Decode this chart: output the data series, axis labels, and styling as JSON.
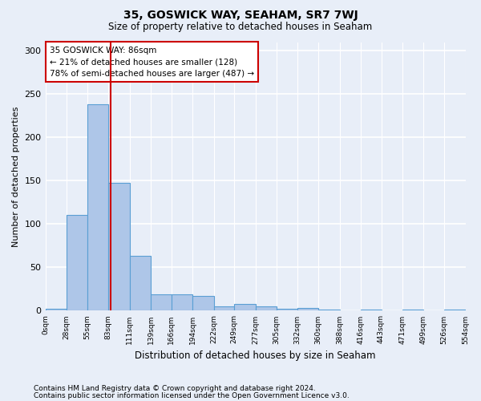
{
  "title": "35, GOSWICK WAY, SEAHAM, SR7 7WJ",
  "subtitle": "Size of property relative to detached houses in Seaham",
  "xlabel": "Distribution of detached houses by size in Seaham",
  "ylabel": "Number of detached properties",
  "footer_line1": "Contains HM Land Registry data © Crown copyright and database right 2024.",
  "footer_line2": "Contains public sector information licensed under the Open Government Licence v3.0.",
  "annotation_title": "35 GOSWICK WAY: 86sqm",
  "annotation_line1": "← 21% of detached houses are smaller (128)",
  "annotation_line2": "78% of semi-detached houses are larger (487) →",
  "property_size": 86,
  "bar_edges": [
    0,
    28,
    55,
    83,
    111,
    139,
    166,
    194,
    222,
    249,
    277,
    305,
    332,
    360,
    388,
    416,
    443,
    471,
    499,
    526,
    554
  ],
  "bar_heights": [
    2,
    111,
    238,
    148,
    63,
    19,
    19,
    17,
    5,
    8,
    5,
    2,
    3,
    1,
    0,
    1,
    0,
    1,
    0,
    1
  ],
  "bar_color": "#aec6e8",
  "bar_edge_color": "#5a9fd4",
  "marker_line_color": "#cc0000",
  "background_color": "#e8eef8",
  "grid_color": "#ffffff",
  "ylim": [
    0,
    310
  ],
  "yticks": [
    0,
    50,
    100,
    150,
    200,
    250,
    300
  ],
  "tick_labels": [
    "0sqm",
    "28sqm",
    "55sqm",
    "83sqm",
    "111sqm",
    "139sqm",
    "166sqm",
    "194sqm",
    "222sqm",
    "249sqm",
    "277sqm",
    "305sqm",
    "332sqm",
    "360sqm",
    "388sqm",
    "416sqm",
    "443sqm",
    "471sqm",
    "499sqm",
    "526sqm",
    "554sqm"
  ]
}
